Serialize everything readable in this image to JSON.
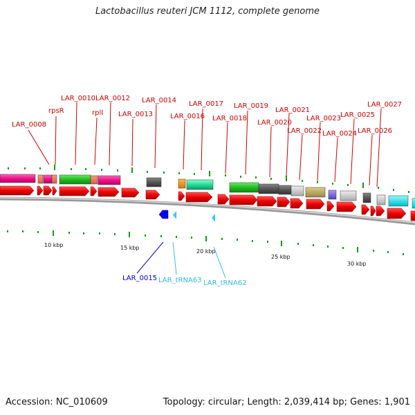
{
  "title": "Lactobacillus reuteri JCM 1112, complete genome",
  "footer": {
    "accession": "Accession: NC_010609",
    "summary": "Topology: circular; Length: 2,039,414 bp; Genes: 1,901"
  },
  "colors": {
    "cds": "#ee0000",
    "backbone": "#888888",
    "label_red": "#cc0000",
    "label_blue": "#0000cc",
    "label_cyan": "#33bbdd"
  },
  "genome_map": {
    "scale_labels": [
      "10 kbp",
      "15 kbp",
      "20 kbp",
      "25 kbp",
      "30 kbp"
    ],
    "top_labels": [
      "LAR_0008",
      "rpsR",
      "LAR_0010",
      "rplI",
      "LAR_0012",
      "LAR_0013",
      "LAR_0014",
      "LAR_0016",
      "LAR_0017",
      "LAR_0018",
      "LAR_0019",
      "LAR_0020",
      "LAR_0021",
      "LAR_0022",
      "LAR_0023",
      "LAR_0024",
      "LAR_0025",
      "LAR_0026",
      "LAR_0027"
    ],
    "bottom_labels": [
      "LAR_0015",
      "LAR_tRNA63",
      "LAR_tRNA62"
    ]
  }
}
